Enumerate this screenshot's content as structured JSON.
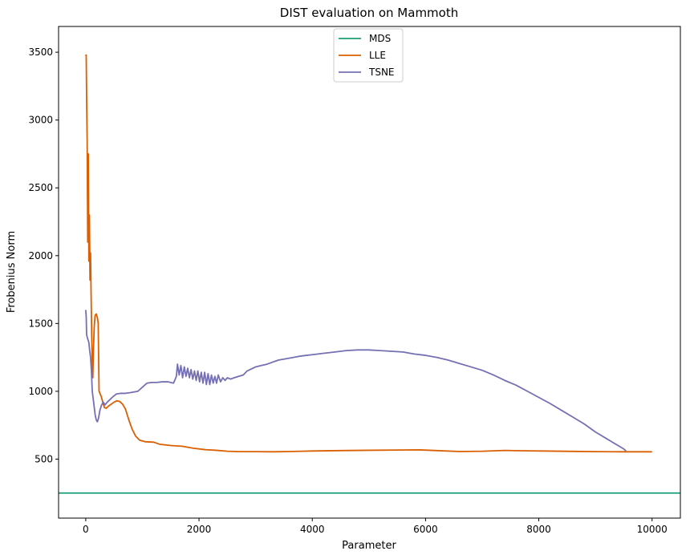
{
  "chart_data": {
    "type": "line",
    "title": "DIST evaluation on Mammoth",
    "xlabel": "Parameter",
    "ylabel": "Frobenius Norm",
    "xlim": [
      -480,
      10500
    ],
    "ylim": [
      65,
      3690
    ],
    "xticks": [
      0,
      2000,
      4000,
      6000,
      8000,
      10000
    ],
    "yticks": [
      500,
      1000,
      1500,
      2000,
      2500,
      3000,
      3500
    ],
    "grid": false,
    "legend": "top-center",
    "series": [
      {
        "name": "MDS",
        "color": "#1b9e77",
        "points": [
          [
            -480,
            250
          ],
          [
            10500,
            250
          ]
        ]
      },
      {
        "name": "LLE",
        "color": "#d95f02",
        "points": [
          [
            0,
            3470
          ],
          [
            8,
            3480
          ],
          [
            15,
            3180
          ],
          [
            25,
            2850
          ],
          [
            35,
            2100
          ],
          [
            45,
            2750
          ],
          [
            55,
            1960
          ],
          [
            65,
            2300
          ],
          [
            75,
            1820
          ],
          [
            85,
            2020
          ],
          [
            95,
            1700
          ],
          [
            105,
            1420
          ],
          [
            115,
            1200
          ],
          [
            125,
            1100
          ],
          [
            135,
            1300
          ],
          [
            150,
            1480
          ],
          [
            165,
            1560
          ],
          [
            185,
            1570
          ],
          [
            205,
            1545
          ],
          [
            220,
            1500
          ],
          [
            235,
            1000
          ],
          [
            255,
            980
          ],
          [
            275,
            960
          ],
          [
            300,
            920
          ],
          [
            330,
            880
          ],
          [
            360,
            875
          ],
          [
            400,
            890
          ],
          [
            450,
            905
          ],
          [
            500,
            920
          ],
          [
            550,
            930
          ],
          [
            600,
            925
          ],
          [
            650,
            905
          ],
          [
            700,
            870
          ],
          [
            760,
            790
          ],
          [
            820,
            720
          ],
          [
            880,
            670
          ],
          [
            950,
            640
          ],
          [
            1050,
            628
          ],
          [
            1200,
            625
          ],
          [
            1300,
            610
          ],
          [
            1500,
            600
          ],
          [
            1700,
            595
          ],
          [
            1900,
            580
          ],
          [
            2100,
            570
          ],
          [
            2300,
            565
          ],
          [
            2500,
            558
          ],
          [
            2700,
            555
          ],
          [
            3000,
            555
          ],
          [
            3300,
            554
          ],
          [
            3600,
            556
          ],
          [
            4000,
            560
          ],
          [
            4500,
            563
          ],
          [
            5000,
            565
          ],
          [
            5500,
            567
          ],
          [
            5900,
            568
          ],
          [
            6200,
            563
          ],
          [
            6600,
            556
          ],
          [
            7000,
            558
          ],
          [
            7400,
            564
          ],
          [
            7800,
            561
          ],
          [
            8200,
            559
          ],
          [
            8600,
            557
          ],
          [
            9000,
            555
          ],
          [
            9500,
            554
          ],
          [
            10000,
            554
          ]
        ]
      },
      {
        "name": "TSNE",
        "color": "#7570b3",
        "points": [
          [
            0,
            1600
          ],
          [
            8,
            1550
          ],
          [
            15,
            1420
          ],
          [
            25,
            1400
          ],
          [
            40,
            1380
          ],
          [
            55,
            1360
          ],
          [
            70,
            1300
          ],
          [
            85,
            1250
          ],
          [
            100,
            1150
          ],
          [
            115,
            1000
          ],
          [
            130,
            950
          ],
          [
            145,
            900
          ],
          [
            165,
            830
          ],
          [
            185,
            790
          ],
          [
            205,
            775
          ],
          [
            225,
            800
          ],
          [
            250,
            860
          ],
          [
            280,
            900
          ],
          [
            310,
            920
          ],
          [
            340,
            900
          ],
          [
            380,
            920
          ],
          [
            430,
            940
          ],
          [
            480,
            960
          ],
          [
            540,
            980
          ],
          [
            620,
            985
          ],
          [
            700,
            985
          ],
          [
            780,
            990
          ],
          [
            850,
            995
          ],
          [
            920,
            1000
          ],
          [
            1000,
            1030
          ],
          [
            1080,
            1060
          ],
          [
            1160,
            1065
          ],
          [
            1250,
            1065
          ],
          [
            1350,
            1070
          ],
          [
            1450,
            1070
          ],
          [
            1550,
            1060
          ],
          [
            1600,
            1110
          ],
          [
            1620,
            1200
          ],
          [
            1650,
            1120
          ],
          [
            1680,
            1190
          ],
          [
            1710,
            1100
          ],
          [
            1740,
            1180
          ],
          [
            1770,
            1110
          ],
          [
            1800,
            1170
          ],
          [
            1830,
            1100
          ],
          [
            1860,
            1160
          ],
          [
            1890,
            1090
          ],
          [
            1920,
            1150
          ],
          [
            1950,
            1080
          ],
          [
            1980,
            1150
          ],
          [
            2010,
            1070
          ],
          [
            2040,
            1140
          ],
          [
            2070,
            1060
          ],
          [
            2100,
            1140
          ],
          [
            2130,
            1050
          ],
          [
            2160,
            1130
          ],
          [
            2190,
            1050
          ],
          [
            2220,
            1120
          ],
          [
            2250,
            1060
          ],
          [
            2280,
            1110
          ],
          [
            2310,
            1060
          ],
          [
            2340,
            1120
          ],
          [
            2380,
            1070
          ],
          [
            2420,
            1100
          ],
          [
            2460,
            1080
          ],
          [
            2500,
            1100
          ],
          [
            2560,
            1090
          ],
          [
            2620,
            1100
          ],
          [
            2700,
            1110
          ],
          [
            2780,
            1120
          ],
          [
            2850,
            1150
          ],
          [
            2900,
            1160
          ],
          [
            2950,
            1170
          ],
          [
            3000,
            1180
          ],
          [
            3100,
            1190
          ],
          [
            3200,
            1200
          ],
          [
            3400,
            1230
          ],
          [
            3600,
            1245
          ],
          [
            3800,
            1260
          ],
          [
            4000,
            1270
          ],
          [
            4200,
            1280
          ],
          [
            4400,
            1290
          ],
          [
            4600,
            1300
          ],
          [
            4800,
            1305
          ],
          [
            5000,
            1305
          ],
          [
            5200,
            1300
          ],
          [
            5400,
            1295
          ],
          [
            5600,
            1290
          ],
          [
            5800,
            1275
          ],
          [
            6000,
            1265
          ],
          [
            6200,
            1250
          ],
          [
            6400,
            1230
          ],
          [
            6600,
            1205
          ],
          [
            6800,
            1180
          ],
          [
            7000,
            1155
          ],
          [
            7200,
            1120
          ],
          [
            7400,
            1080
          ],
          [
            7600,
            1045
          ],
          [
            7800,
            1000
          ],
          [
            8000,
            955
          ],
          [
            8200,
            910
          ],
          [
            8400,
            860
          ],
          [
            8600,
            810
          ],
          [
            8800,
            760
          ],
          [
            9000,
            700
          ],
          [
            9200,
            650
          ],
          [
            9400,
            600
          ],
          [
            9500,
            575
          ],
          [
            9540,
            560
          ]
        ]
      }
    ],
    "legend_labels": [
      "MDS",
      "LLE",
      "TSNE"
    ]
  }
}
